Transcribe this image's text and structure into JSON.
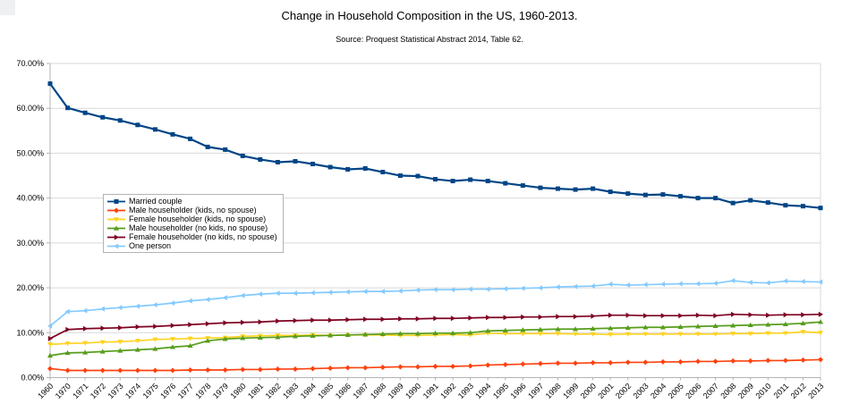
{
  "chart_data": {
    "type": "line",
    "title": "Change in Household Composition in the US, 1960-2013.",
    "subtitle": "Source: Proquest Statistical Abstract 2014, Table 62.",
    "xlabel": "",
    "ylabel": "",
    "grid": "horizontal",
    "legend_position": "overlay-left-middle",
    "x_categories": [
      "1960",
      "1970",
      "1971",
      "1972",
      "1973",
      "1974",
      "1975",
      "1976",
      "1977",
      "1978",
      "1979",
      "1980",
      "1981",
      "1982",
      "1983",
      "1984",
      "1985",
      "1986",
      "1987",
      "1988",
      "1989",
      "1990",
      "1991",
      "1992",
      "1993",
      "1994",
      "1995",
      "1996",
      "1997",
      "1998",
      "1999",
      "2000",
      "2001",
      "2002",
      "2003",
      "2004",
      "2005",
      "2006",
      "2007",
      "2008",
      "2009",
      "2010",
      "2011",
      "2012",
      "2013"
    ],
    "y_axis": {
      "min": 0,
      "max": 70,
      "tick_interval": 10,
      "tick_labels": [
        "0.00%",
        "10.00%",
        "20.00%",
        "30.00%",
        "40.00%",
        "50.00%",
        "60.00%",
        "70.00%"
      ]
    },
    "series": [
      {
        "name": "Married couple",
        "color": "#004586",
        "marker": "square",
        "values": [
          65.5,
          60.1,
          59.0,
          58.0,
          57.3,
          56.3,
          55.3,
          54.2,
          53.2,
          51.4,
          50.8,
          49.4,
          48.6,
          48.0,
          48.2,
          47.6,
          46.9,
          46.4,
          46.6,
          45.8,
          45.0,
          44.9,
          44.2,
          43.8,
          44.1,
          43.8,
          43.3,
          42.8,
          42.3,
          42.1,
          41.9,
          42.1,
          41.4,
          41.0,
          40.7,
          40.8,
          40.4,
          40.0,
          40.0,
          38.9,
          39.5,
          39.0,
          38.4,
          38.2,
          37.8
        ]
      },
      {
        "name": "Male householder (kids, no spouse)",
        "color": "#ff420e",
        "marker": "diamond",
        "values": [
          2.0,
          1.6,
          1.6,
          1.6,
          1.6,
          1.6,
          1.6,
          1.6,
          1.7,
          1.7,
          1.7,
          1.8,
          1.8,
          1.9,
          1.9,
          2.0,
          2.1,
          2.2,
          2.2,
          2.3,
          2.4,
          2.4,
          2.5,
          2.5,
          2.6,
          2.8,
          2.9,
          3.0,
          3.1,
          3.2,
          3.2,
          3.3,
          3.3,
          3.4,
          3.4,
          3.5,
          3.5,
          3.6,
          3.6,
          3.7,
          3.7,
          3.8,
          3.8,
          3.9,
          4.0
        ]
      },
      {
        "name": "Female householder (kids, no spouse)",
        "color": "#ffd320",
        "marker": "triangle-down",
        "values": [
          7.4,
          7.6,
          7.7,
          7.9,
          8.0,
          8.2,
          8.5,
          8.6,
          8.7,
          8.8,
          8.9,
          9.2,
          9.3,
          9.4,
          9.4,
          9.5,
          9.4,
          9.5,
          9.5,
          9.5,
          9.4,
          9.4,
          9.5,
          9.6,
          9.5,
          9.9,
          9.8,
          9.8,
          9.8,
          9.8,
          9.7,
          9.7,
          9.6,
          9.7,
          9.7,
          9.7,
          9.7,
          9.7,
          9.7,
          9.8,
          9.8,
          9.9,
          9.9,
          10.2,
          10.0
        ]
      },
      {
        "name": "Male householder (no kids, no spouse)",
        "color": "#579d1c",
        "marker": "triangle-up",
        "values": [
          4.9,
          5.5,
          5.6,
          5.8,
          6.0,
          6.2,
          6.4,
          6.8,
          7.1,
          8.2,
          8.6,
          8.8,
          8.9,
          9.0,
          9.2,
          9.3,
          9.4,
          9.5,
          9.6,
          9.7,
          9.8,
          9.8,
          9.9,
          9.9,
          10.0,
          10.4,
          10.5,
          10.6,
          10.7,
          10.8,
          10.8,
          10.9,
          11.0,
          11.1,
          11.2,
          11.2,
          11.3,
          11.4,
          11.5,
          11.6,
          11.7,
          11.8,
          11.9,
          12.1,
          12.4
        ]
      },
      {
        "name": "Female householder (no kids, no spouse)",
        "color": "#7e0021",
        "marker": "arrow-right",
        "values": [
          8.7,
          10.7,
          10.9,
          11.0,
          11.1,
          11.3,
          11.4,
          11.6,
          11.8,
          12.0,
          12.2,
          12.3,
          12.4,
          12.6,
          12.7,
          12.8,
          12.8,
          12.9,
          13.0,
          13.0,
          13.1,
          13.1,
          13.2,
          13.2,
          13.3,
          13.4,
          13.4,
          13.5,
          13.5,
          13.6,
          13.6,
          13.7,
          13.9,
          13.9,
          13.8,
          13.8,
          13.8,
          13.9,
          13.8,
          14.1,
          14.0,
          13.9,
          14.0,
          14.0,
          14.1
        ]
      },
      {
        "name": "One person",
        "color": "#83caff",
        "marker": "arrow-left",
        "values": [
          11.5,
          14.7,
          14.9,
          15.3,
          15.6,
          15.9,
          16.2,
          16.6,
          17.1,
          17.4,
          17.8,
          18.3,
          18.6,
          18.8,
          18.8,
          18.9,
          19.0,
          19.1,
          19.2,
          19.2,
          19.3,
          19.5,
          19.6,
          19.6,
          19.7,
          19.7,
          19.8,
          19.9,
          20.0,
          20.2,
          20.3,
          20.4,
          20.8,
          20.6,
          20.7,
          20.8,
          20.9,
          20.9,
          21.0,
          21.6,
          21.2,
          21.1,
          21.5,
          21.4,
          21.3
        ]
      }
    ],
    "colors": {
      "grid": "#d9d9d9",
      "axis": "#b3b3b3",
      "text": "#000000",
      "background": "#ffffff"
    }
  }
}
